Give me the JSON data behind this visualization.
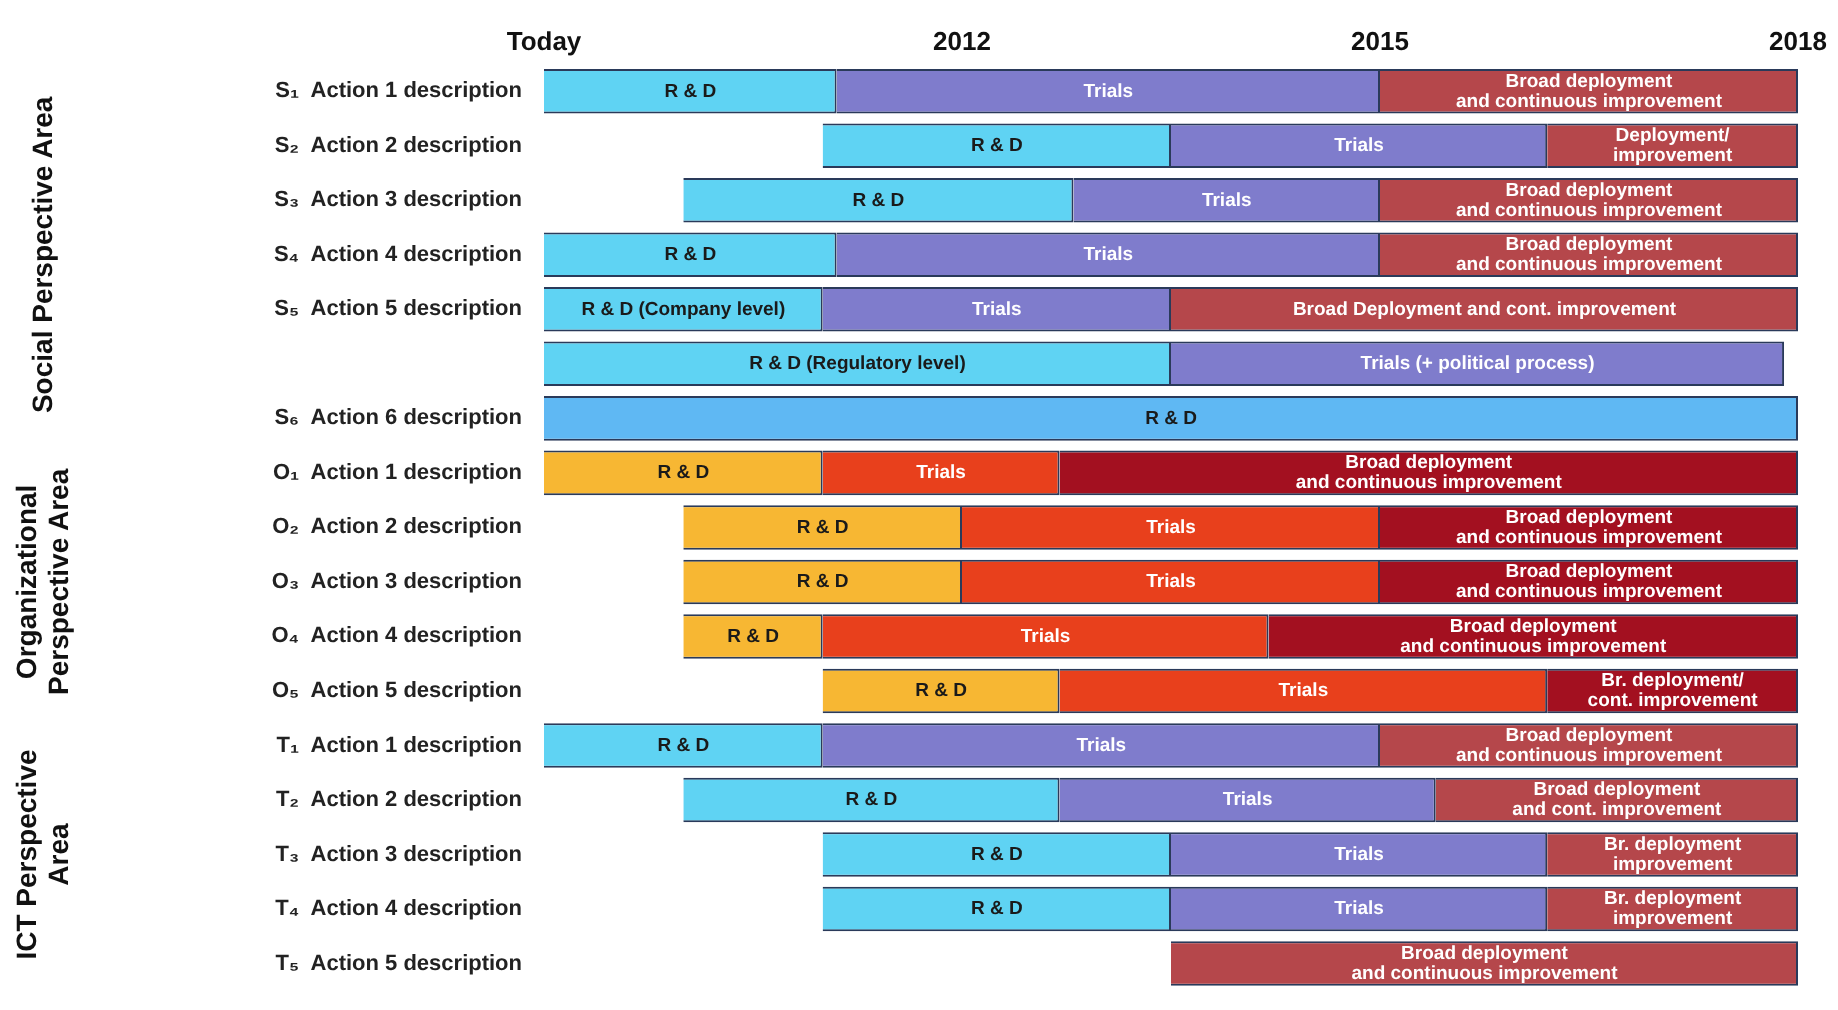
{
  "chart_data": {
    "type": "bar",
    "orientation": "horizontal",
    "categories": [
      "S₁  Action 1 description",
      "S₂  Action 2 description",
      "S₃  Action 3 description",
      "S₄  Action 4 description",
      "S₅  Action 5 description",
      null,
      "S₆  Action 6 description",
      "O₁  Action 1 description",
      "O₂  Action 2 description",
      "O₃  Action 3 description",
      "O₄  Action 4 description",
      "O₅  Action 5 description",
      "T₁  Action 1 description",
      "T₂  Action 2 description",
      "T₃  Action 3 description",
      "T₄  Action 4 description",
      "T₅  Action 5 description"
    ],
    "xlim": [
      2009,
      2018
    ],
    "xticks": [
      {
        "value": 2009,
        "label": "Today"
      },
      2012,
      2015,
      2018
    ],
    "series": [
      {
        "base": [
          2009,
          2011,
          2010,
          2009,
          2009,
          2009,
          2009,
          2009,
          2010,
          2010,
          2010,
          2011,
          2009,
          2010,
          2011,
          2011,
          null
        ],
        "values": [
          2.1,
          2.5,
          2.8,
          2.1,
          2,
          4.5,
          9,
          2,
          2,
          2,
          1,
          1.7,
          2,
          2.7,
          2.5,
          2.5,
          null
        ],
        "colors": [
          "#5fd3f3",
          "#5fd3f3",
          "#5fd3f3",
          "#5fd3f3",
          "#5fd3f3",
          "#5fd3f3",
          "#5fb8f3",
          "#f7b733",
          "#f7b733",
          "#f7b733",
          "#f7b733",
          "#f7b733",
          "#5fd3f3",
          "#5fd3f3",
          "#5fd3f3",
          "#5fd3f3",
          "#5fd3f3"
        ],
        "value_labels": [
          "R & D",
          "R & D",
          "R & D",
          "R & D",
          "R & D (Company level)",
          "R & D (Regulatory level)",
          "R & D",
          "R & D",
          "R & D",
          "R & D",
          "R & D",
          "R & D",
          "R & D",
          "R & D",
          "R & D",
          "R & D",
          null
        ]
      },
      {
        "base": [
          2011.1,
          2013.5,
          2012.8,
          2011.1,
          2011,
          2013.5,
          null,
          2011,
          2012,
          2012,
          2011,
          2012.7,
          2011,
          2012.7,
          2013.5,
          2013.5,
          null
        ],
        "values": [
          3.9,
          2.7,
          2.2,
          3.9,
          2.5,
          4.4,
          null,
          1.7,
          3,
          3,
          3.2,
          3.5,
          4,
          2.7,
          2.7,
          2.7,
          null
        ],
        "colors": [
          "#7f7ccc",
          "#7f7ccc",
          "#7f7ccc",
          "#7f7ccc",
          "#7f7ccc",
          "#7f7ccc",
          null,
          "#e8401c",
          "#e8401c",
          "#e8401c",
          "#e8401c",
          "#e8401c",
          "#7f7ccc",
          "#7f7ccc",
          "#7f7ccc",
          "#7f7ccc",
          null
        ],
        "value_labels": [
          "Trials",
          "Trials",
          "Trials",
          "Trials",
          "Trials",
          "Trials (+ political process)",
          null,
          "Trials",
          "Trials",
          "Trials",
          "Trials",
          "Trials",
          "Trials",
          "Trials",
          "Trials",
          "Trials",
          null
        ]
      },
      {
        "base": [
          2015,
          2016.2,
          2015,
          2015,
          2013.5,
          null,
          null,
          2012.7,
          2015,
          2015,
          2014.2,
          2016.2,
          2015,
          2015.4,
          2016.2,
          2016.2,
          2013.5
        ],
        "values": [
          3,
          1.8,
          3,
          3,
          4.5,
          null,
          null,
          5.3,
          3,
          3,
          3.8,
          1.8,
          3,
          2.6,
          1.8,
          1.8,
          4.5
        ],
        "colors": [
          "#b5474b",
          "#b5474b",
          "#b5474b",
          "#b5474b",
          "#b5474b",
          null,
          null,
          "#a31020",
          "#a31020",
          "#a31020",
          "#a31020",
          "#a31020",
          "#b5474b",
          "#b5474b",
          "#b5474b",
          "#b5474b",
          "#b5474b"
        ],
        "value_labels": [
          "Broad deployment\nand continuous improvement",
          "Deployment/\nimprovement",
          "Broad deployment\nand continuous improvement",
          "Broad deployment\nand continuous improvement",
          "Broad Deployment and cont. improvement",
          null,
          null,
          "Broad deployment\nand continuous improvement",
          "Broad deployment\nand continuous improvement",
          "Broad deployment\nand continuous improvement",
          "Broad deployment\nand continuous improvement",
          "Br. deployment/\ncont. improvement",
          "Broad deployment\nand continuous improvement",
          "Broad deployment\nand cont. improvement",
          "Br. deployment\nimprovement",
          "Br. deployment\nimprovement",
          "Broad deployment\nand continuous improvement"
        ]
      }
    ],
    "annotations": [
      "Social Perspective Area",
      "Organizational Perspective Area",
      "ICT Perspective Area"
    ]
  }
}
